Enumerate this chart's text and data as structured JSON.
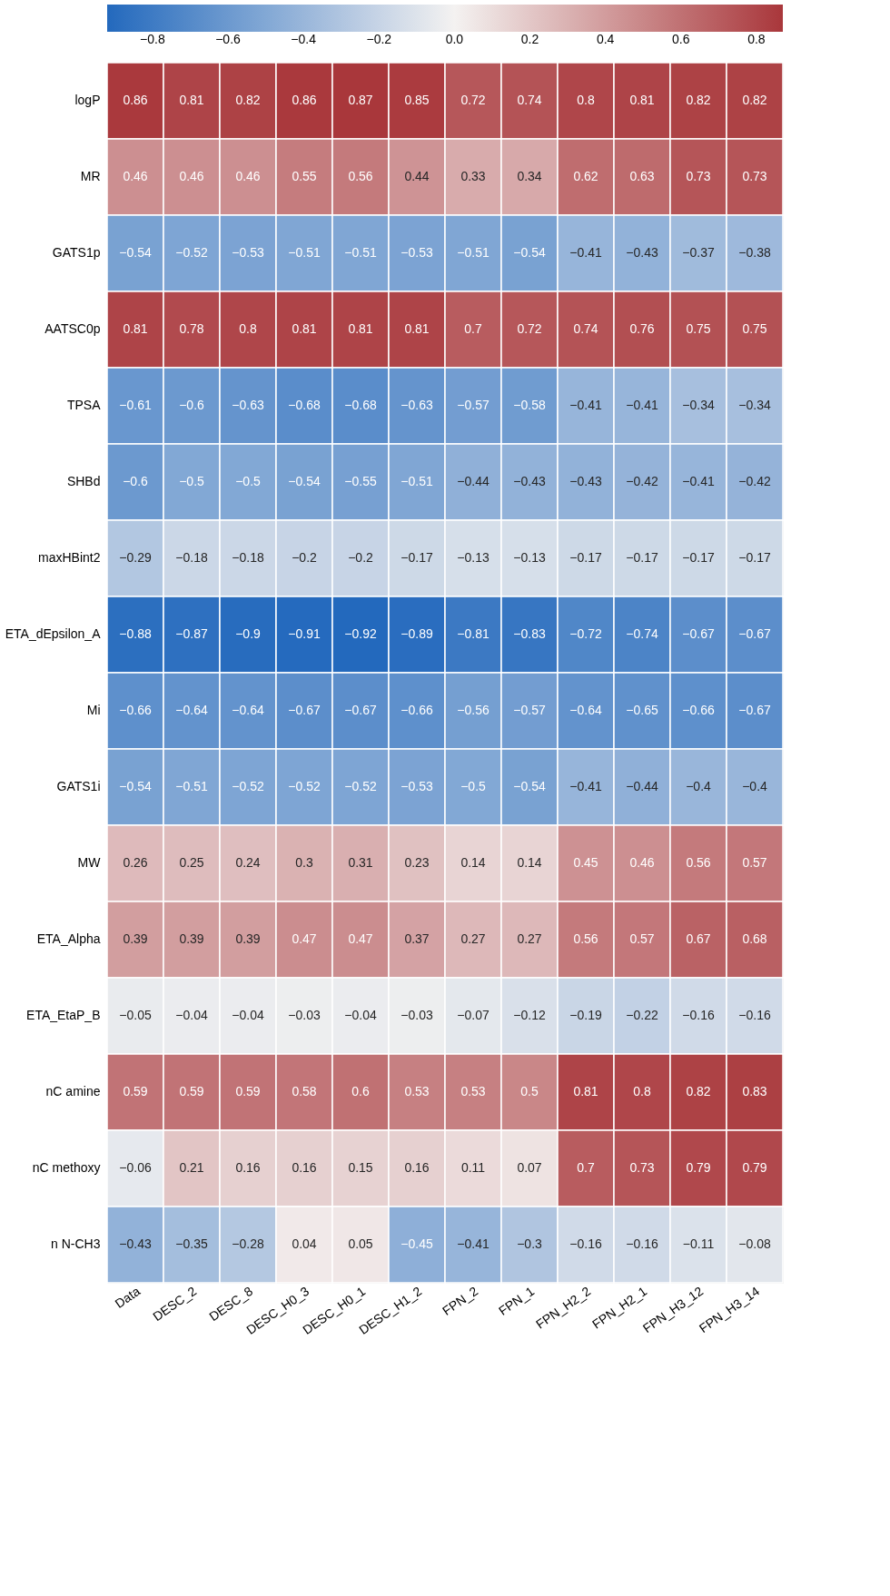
{
  "chart_data": {
    "type": "heatmap",
    "categories": [
      "Data",
      "DESC_2",
      "DESC_8",
      "DESC_H0_3",
      "DESC_H0_1",
      "DESC_H1_2",
      "FPN_2",
      "FPN_1",
      "FPN_H2_2",
      "FPN_H2_1",
      "FPN_H3_12",
      "FPN_H3_14"
    ],
    "y_categories": [
      "logP",
      "MR",
      "GATS1p",
      "AATSC0p",
      "TPSA",
      "SHBd",
      "maxHBint2",
      "ETA_dEpsilon_A",
      "Mi",
      "GATS1i",
      "MW",
      "ETA_Alpha",
      "ETA_EtaP_B",
      "nC amine",
      "nC methoxy",
      "n N-CH3"
    ],
    "cells": [
      [
        0.86,
        0.81,
        0.82,
        0.86,
        0.87,
        0.85,
        0.72,
        0.74,
        0.8,
        0.81,
        0.82,
        0.82
      ],
      [
        0.46,
        0.46,
        0.46,
        0.55,
        0.56,
        0.44,
        0.33,
        0.34,
        0.62,
        0.63,
        0.73,
        0.73
      ],
      [
        -0.54,
        -0.52,
        -0.53,
        -0.51,
        -0.51,
        -0.53,
        -0.51,
        -0.54,
        -0.41,
        -0.43,
        -0.37,
        -0.38
      ],
      [
        0.81,
        0.78,
        0.8,
        0.81,
        0.81,
        0.81,
        0.7,
        0.72,
        0.74,
        0.76,
        0.75,
        0.75
      ],
      [
        -0.61,
        -0.6,
        -0.63,
        -0.68,
        -0.68,
        -0.63,
        -0.57,
        -0.58,
        -0.41,
        -0.41,
        -0.34,
        -0.34
      ],
      [
        -0.6,
        -0.5,
        -0.5,
        -0.54,
        -0.55,
        -0.51,
        -0.44,
        -0.43,
        -0.43,
        -0.42,
        -0.41,
        -0.42
      ],
      [
        -0.29,
        -0.18,
        -0.18,
        -0.2,
        -0.2,
        -0.17,
        -0.13,
        -0.13,
        -0.17,
        -0.17,
        -0.17,
        -0.17
      ],
      [
        -0.88,
        -0.87,
        -0.9,
        -0.91,
        -0.92,
        -0.89,
        -0.81,
        -0.83,
        -0.72,
        -0.74,
        -0.67,
        -0.67
      ],
      [
        -0.66,
        -0.64,
        -0.64,
        -0.67,
        -0.67,
        -0.66,
        -0.56,
        -0.57,
        -0.64,
        -0.65,
        -0.66,
        -0.67
      ],
      [
        -0.54,
        -0.51,
        -0.52,
        -0.52,
        -0.52,
        -0.53,
        -0.5,
        -0.54,
        -0.41,
        -0.44,
        -0.4,
        -0.4
      ],
      [
        0.26,
        0.25,
        0.24,
        0.3,
        0.31,
        0.23,
        0.14,
        0.14,
        0.45,
        0.46,
        0.56,
        0.57
      ],
      [
        0.39,
        0.39,
        0.39,
        0.47,
        0.47,
        0.37,
        0.27,
        0.27,
        0.56,
        0.57,
        0.67,
        0.68
      ],
      [
        -0.05,
        -0.04,
        -0.04,
        -0.03,
        -0.04,
        -0.03,
        -0.07,
        -0.12,
        -0.19,
        -0.22,
        -0.16,
        -0.16
      ],
      [
        0.59,
        0.59,
        0.59,
        0.58,
        0.6,
        0.53,
        0.53,
        0.5,
        0.81,
        0.8,
        0.82,
        0.83
      ],
      [
        -0.06,
        0.21,
        0.16,
        0.16,
        0.15,
        0.16,
        0.11,
        0.07,
        0.7,
        0.73,
        0.79,
        0.79
      ],
      [
        -0.43,
        -0.35,
        -0.28,
        0.04,
        0.05,
        -0.45,
        -0.41,
        -0.3,
        -0.16,
        -0.16,
        -0.11,
        -0.08
      ]
    ],
    "clim": [
      -0.92,
      0.87
    ],
    "cticks": [
      -0.8,
      -0.6,
      -0.4,
      -0.2,
      {
        "value": 0,
        "label": "0.0"
      },
      0.2,
      0.4,
      0.6,
      0.8
    ],
    "data_labels": true
  }
}
